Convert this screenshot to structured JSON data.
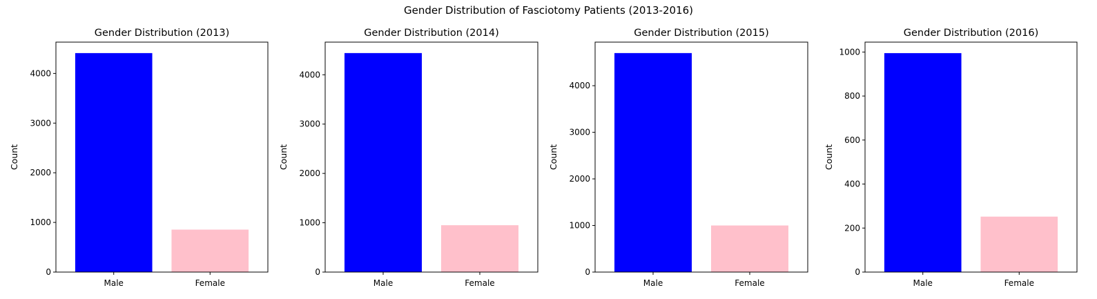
{
  "figure": {
    "suptitle": "Gender Distribution of Fasciotomy Patients (2013-2016)"
  },
  "chart_data": [
    {
      "type": "bar",
      "title": "Gender Distribution (2013)",
      "xlabel": "",
      "ylabel": "Count",
      "categories": [
        "Male",
        "Female"
      ],
      "values": [
        4410,
        855
      ],
      "colors": [
        "#0000ff",
        "#ffc0cb"
      ],
      "ylim": [
        0,
        4631
      ],
      "yticks": [
        0,
        1000,
        2000,
        3000,
        4000
      ],
      "grid": false
    },
    {
      "type": "bar",
      "title": "Gender Distribution (2014)",
      "xlabel": "",
      "ylabel": "Count",
      "categories": [
        "Male",
        "Female"
      ],
      "values": [
        4440,
        950
      ],
      "colors": [
        "#0000ff",
        "#ffc0cb"
      ],
      "ylim": [
        0,
        4662
      ],
      "yticks": [
        0,
        1000,
        2000,
        3000,
        4000
      ],
      "grid": false
    },
    {
      "type": "bar",
      "title": "Gender Distribution (2015)",
      "xlabel": "",
      "ylabel": "Count",
      "categories": [
        "Male",
        "Female"
      ],
      "values": [
        4700,
        1000
      ],
      "colors": [
        "#0000ff",
        "#ffc0cb"
      ],
      "ylim": [
        0,
        4935
      ],
      "yticks": [
        0,
        1000,
        2000,
        3000,
        4000
      ],
      "grid": false
    },
    {
      "type": "bar",
      "title": "Gender Distribution (2016)",
      "xlabel": "",
      "ylabel": "Count",
      "categories": [
        "Male",
        "Female"
      ],
      "values": [
        995,
        252
      ],
      "colors": [
        "#0000ff",
        "#ffc0cb"
      ],
      "ylim": [
        0,
        1045
      ],
      "yticks": [
        0,
        200,
        400,
        600,
        800,
        1000
      ],
      "grid": false
    }
  ]
}
